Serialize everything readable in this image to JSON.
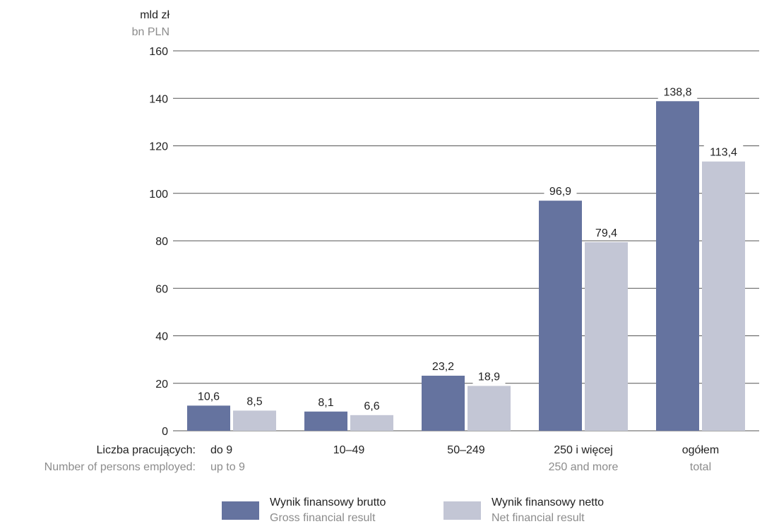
{
  "chart_data": {
    "type": "bar",
    "y_unit_pl": "mld zł",
    "y_unit_en": "bn PLN",
    "ylim": [
      0,
      160
    ],
    "yticks": [
      0,
      20,
      40,
      60,
      80,
      100,
      120,
      140,
      160
    ],
    "grid": true,
    "category_prefix_pl": "Liczba pracujących:",
    "category_prefix_en": "Number of persons employed:",
    "categories_pl": [
      "do 9",
      "10–49",
      "50–249",
      "250 i więcej",
      "ogółem"
    ],
    "categories_en": [
      "up to 9",
      "",
      "",
      "250 and more",
      "total"
    ],
    "series": [
      {
        "name": "Wynik finansowy brutto",
        "name_en": "Gross financial result",
        "color": "#65739f",
        "values": [
          10.6,
          8.1,
          23.2,
          96.9,
          138.8
        ],
        "labels": [
          "10,6",
          "8,1",
          "23,2",
          "96,9",
          "138,8"
        ]
      },
      {
        "name": "Wynik finansowy netto",
        "name_en": "Net financial result",
        "color": "#c3c6d5",
        "values": [
          8.5,
          6.6,
          18.9,
          79.4,
          113.4
        ],
        "labels": [
          "8,5",
          "6,6",
          "18,9",
          "79,4",
          "113,4"
        ]
      }
    ],
    "legend_position": "bottom"
  }
}
